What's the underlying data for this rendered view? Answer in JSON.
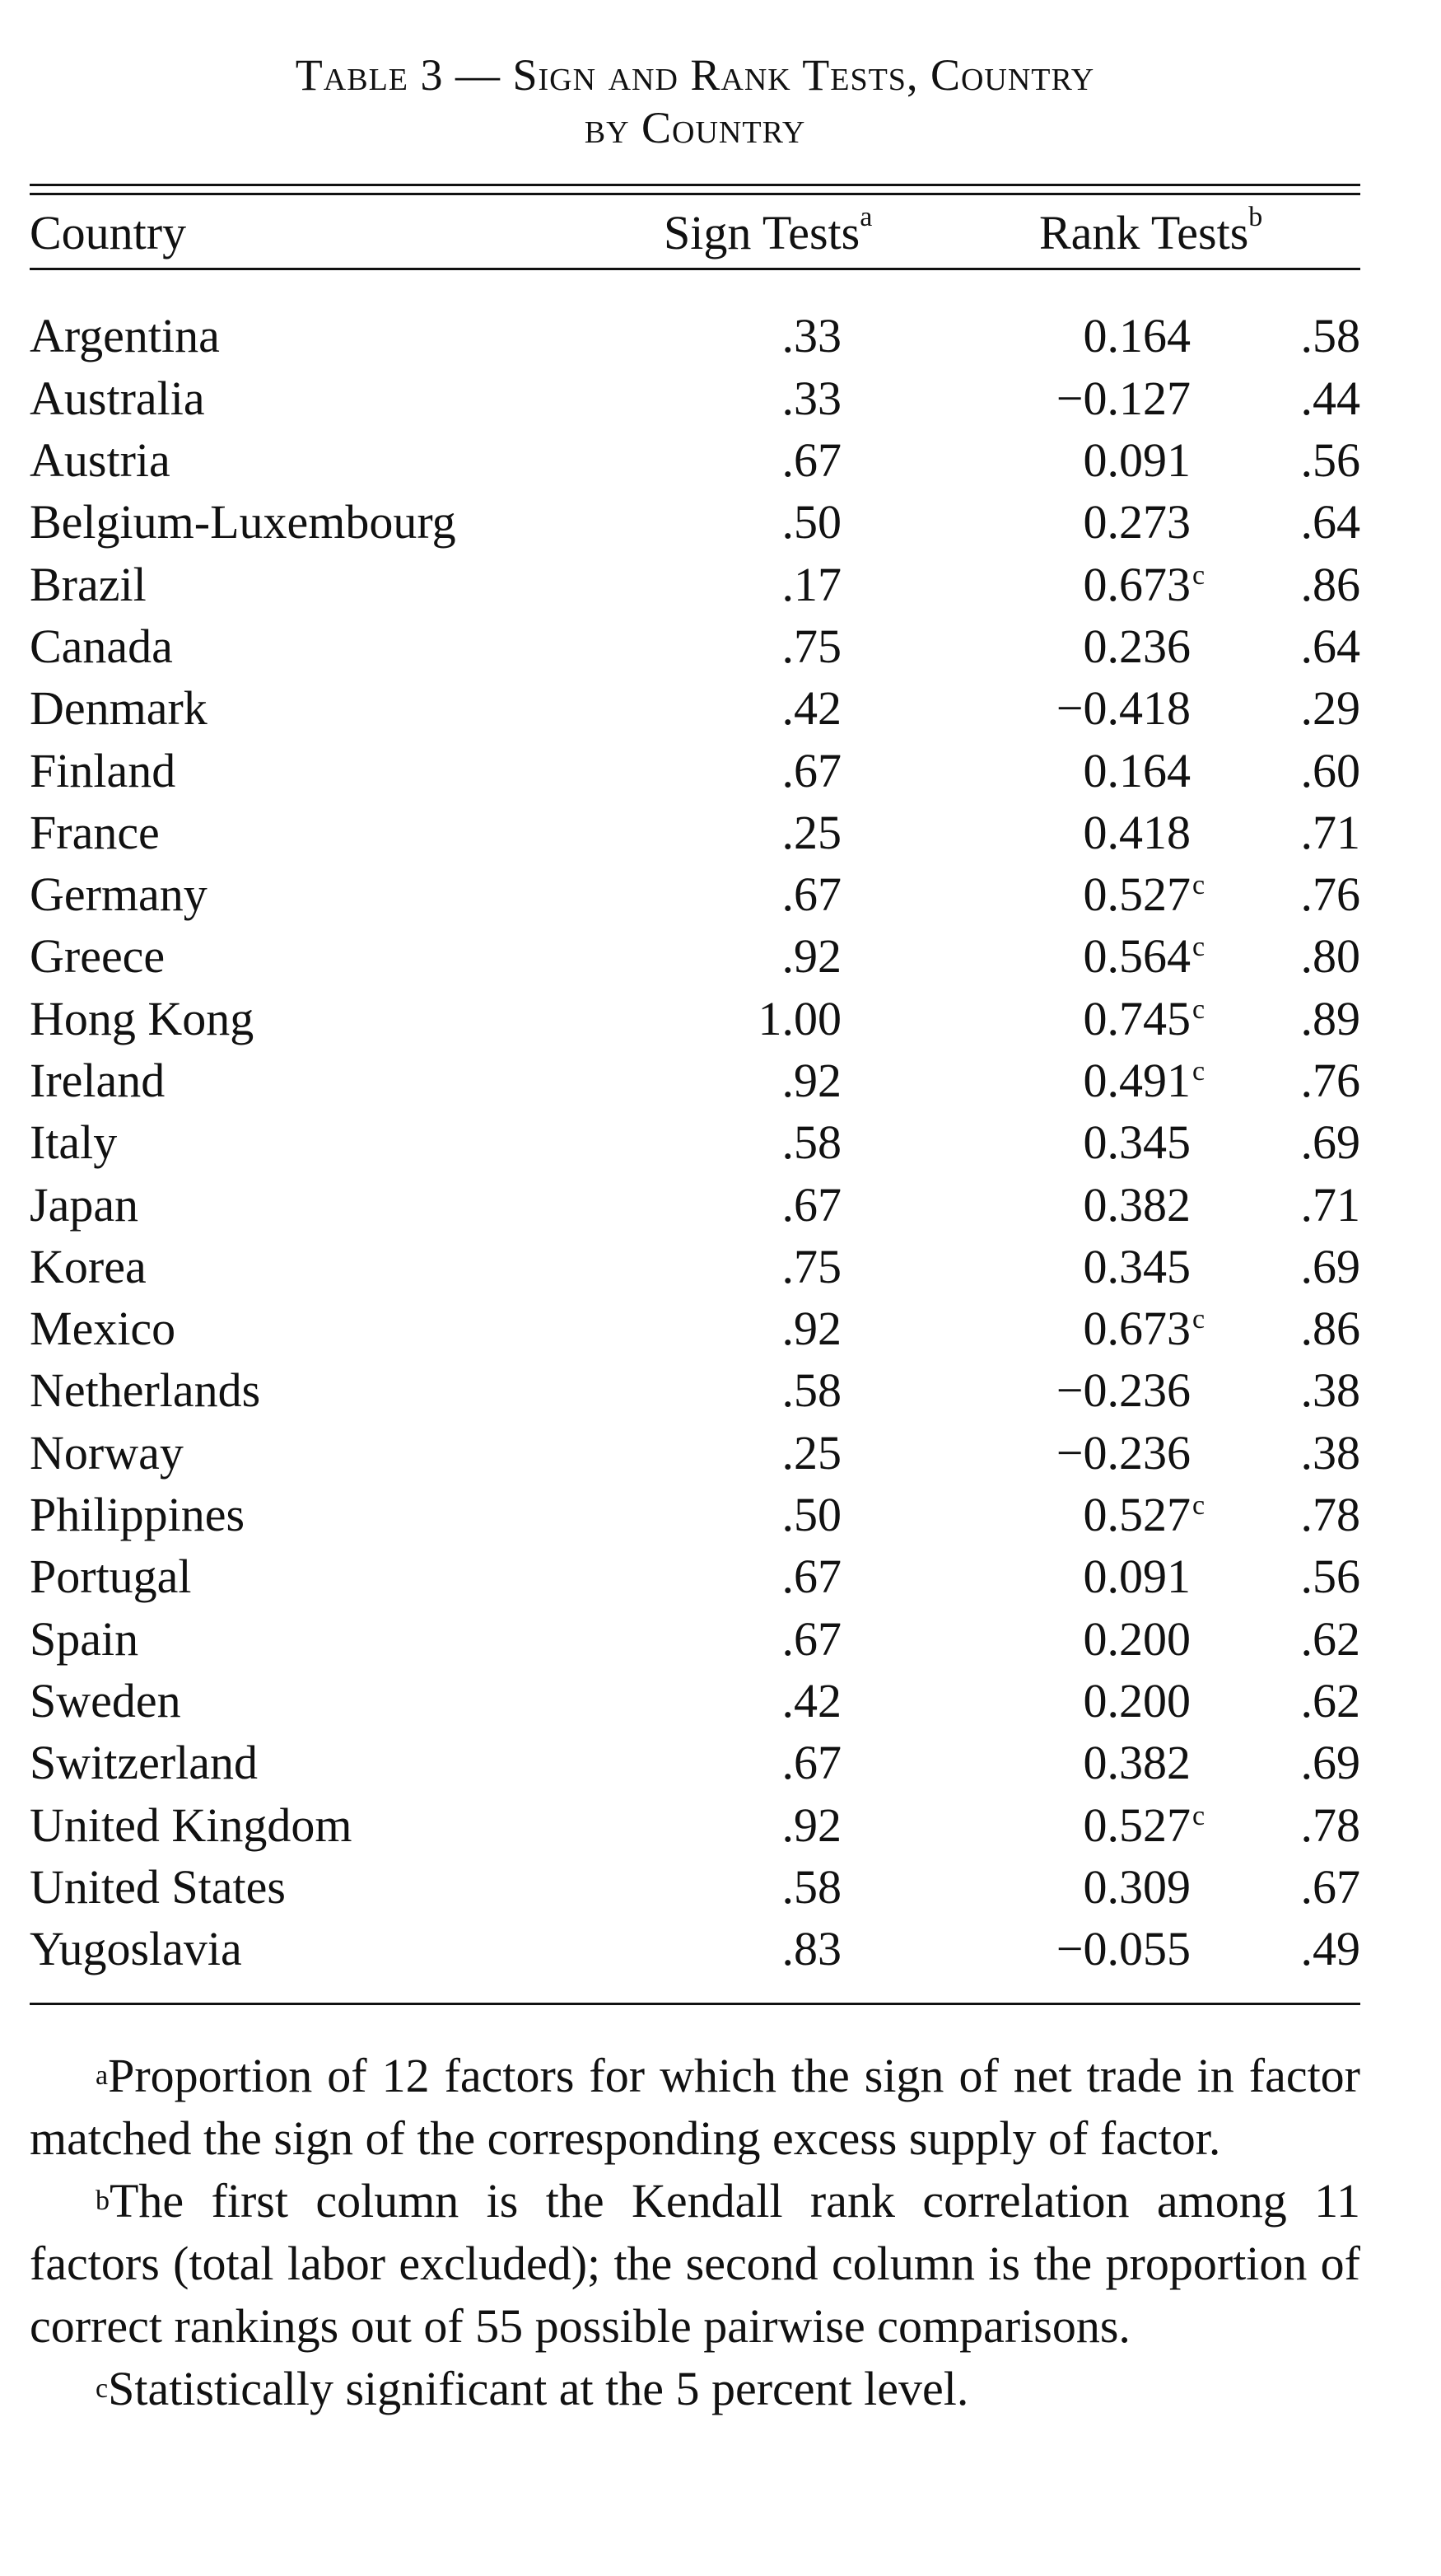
{
  "title": {
    "line1": "Table 3 — Sign and Rank Tests, Country",
    "line2": "by Country"
  },
  "header": {
    "country": "Country",
    "sign_tests": "Sign Tests",
    "sign_tests_mark": "a",
    "rank_tests": "Rank Tests",
    "rank_tests_mark": "b"
  },
  "rows": [
    {
      "country": "Argentina",
      "sign": ".33",
      "rank": "0.164",
      "sig": "",
      "prop": ".58"
    },
    {
      "country": "Australia",
      "sign": ".33",
      "rank": "−0.127",
      "sig": "",
      "prop": ".44"
    },
    {
      "country": "Austria",
      "sign": ".67",
      "rank": "0.091",
      "sig": "",
      "prop": ".56"
    },
    {
      "country": "Belgium-Luxembourg",
      "sign": ".50",
      "rank": "0.273",
      "sig": "",
      "prop": ".64"
    },
    {
      "country": "Brazil",
      "sign": ".17",
      "rank": "0.673",
      "sig": "c",
      "prop": ".86"
    },
    {
      "country": "Canada",
      "sign": ".75",
      "rank": "0.236",
      "sig": "",
      "prop": ".64"
    },
    {
      "country": "Denmark",
      "sign": ".42",
      "rank": "−0.418",
      "sig": "",
      "prop": ".29"
    },
    {
      "country": "Finland",
      "sign": ".67",
      "rank": "0.164",
      "sig": "",
      "prop": ".60"
    },
    {
      "country": "France",
      "sign": ".25",
      "rank": "0.418",
      "sig": "",
      "prop": ".71"
    },
    {
      "country": "Germany",
      "sign": ".67",
      "rank": "0.527",
      "sig": "c",
      "prop": ".76"
    },
    {
      "country": "Greece",
      "sign": ".92",
      "rank": "0.564",
      "sig": "c",
      "prop": ".80"
    },
    {
      "country": "Hong Kong",
      "sign": "1.00",
      "rank": "0.745",
      "sig": "c",
      "prop": ".89"
    },
    {
      "country": "Ireland",
      "sign": ".92",
      "rank": "0.491",
      "sig": "c",
      "prop": ".76"
    },
    {
      "country": "Italy",
      "sign": ".58",
      "rank": "0.345",
      "sig": "",
      "prop": ".69"
    },
    {
      "country": "Japan",
      "sign": ".67",
      "rank": "0.382",
      "sig": "",
      "prop": ".71"
    },
    {
      "country": "Korea",
      "sign": ".75",
      "rank": "0.345",
      "sig": "",
      "prop": ".69"
    },
    {
      "country": "Mexico",
      "sign": ".92",
      "rank": "0.673",
      "sig": "c",
      "prop": ".86"
    },
    {
      "country": "Netherlands",
      "sign": ".58",
      "rank": "−0.236",
      "sig": "",
      "prop": ".38"
    },
    {
      "country": "Norway",
      "sign": ".25",
      "rank": "−0.236",
      "sig": "",
      "prop": ".38"
    },
    {
      "country": "Philippines",
      "sign": ".50",
      "rank": "0.527",
      "sig": "c",
      "prop": ".78"
    },
    {
      "country": "Portugal",
      "sign": ".67",
      "rank": "0.091",
      "sig": "",
      "prop": ".56"
    },
    {
      "country": "Spain",
      "sign": ".67",
      "rank": "0.200",
      "sig": "",
      "prop": ".62"
    },
    {
      "country": "Sweden",
      "sign": ".42",
      "rank": "0.200",
      "sig": "",
      "prop": ".62"
    },
    {
      "country": "Switzerland",
      "sign": ".67",
      "rank": "0.382",
      "sig": "",
      "prop": ".69"
    },
    {
      "country": "United Kingdom",
      "sign": ".92",
      "rank": "0.527",
      "sig": "c",
      "prop": ".78"
    },
    {
      "country": "United States",
      "sign": ".58",
      "rank": "0.309",
      "sig": "",
      "prop": ".67"
    },
    {
      "country": "Yugoslavia",
      "sign": ".83",
      "rank": "−0.055",
      "sig": "",
      "prop": ".49"
    }
  ],
  "notes": [
    {
      "mark": "a",
      "text": "Proportion of 12 factors for which the sign of net trade in factor matched the sign of the corresponding excess supply of factor."
    },
    {
      "mark": "b",
      "text": "The first column is the Kendall rank correlation among 11 factors (total labor excluded); the second column is the proportion of correct rankings out of 55 possible pairwise comparisons."
    },
    {
      "mark": "c",
      "text": "Statistically significant at the 5 percent level."
    }
  ]
}
